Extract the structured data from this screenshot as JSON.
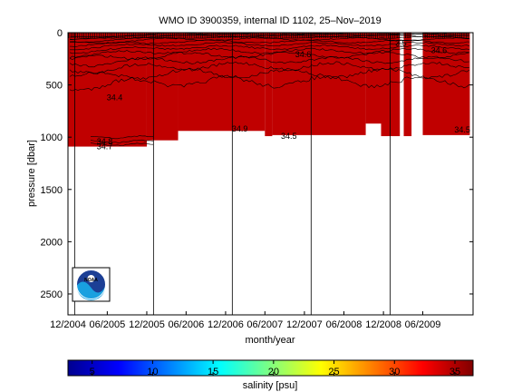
{
  "chart_data": {
    "type": "heatmap",
    "title": "WMO ID 3900359, internal ID 1102, 25–Nov–2019",
    "xlabel": "month/year",
    "ylabel": "pressure [dbar]",
    "y_ticks": [
      0,
      500,
      1000,
      1500,
      2000,
      2500
    ],
    "y_range": [
      0,
      2700
    ],
    "y_reversed": true,
    "x_ticks": [
      "12/2004",
      "06/2005",
      "12/2005",
      "06/2006",
      "12/2006",
      "06/2007",
      "12/2007",
      "06/2008",
      "12/2008",
      "06/2009"
    ],
    "x_range": [
      "2004-12-01",
      "2010-01-20"
    ],
    "profile_depths": [
      {
        "start": "2004-12-01",
        "end": "2005-12-01",
        "max_pressure": 1090
      },
      {
        "start": "2005-12-01",
        "end": "2006-04-25",
        "max_pressure": 1030
      },
      {
        "start": "2006-04-25",
        "end": "2007-06-01",
        "max_pressure": 940
      },
      {
        "start": "2007-06-01",
        "end": "2007-07-05",
        "max_pressure": 990
      },
      {
        "start": "2007-07-05",
        "end": "2008-09-10",
        "max_pressure": 980
      },
      {
        "start": "2008-09-10",
        "end": "2008-11-20",
        "max_pressure": 870
      },
      {
        "start": "2008-11-20",
        "end": "2009-02-15",
        "max_pressure": 990
      },
      {
        "start": "2009-03-05",
        "end": "2009-04-10",
        "max_pressure": 990
      },
      {
        "start": "2009-06-01",
        "end": "2010-01-05",
        "max_pressure": 980
      }
    ],
    "data_gaps": [
      [
        "2009-02-15",
        "2009-03-05"
      ],
      [
        "2009-04-10",
        "2009-06-01"
      ]
    ],
    "year_boundaries": [
      "2005-01-01",
      "2006-01-01",
      "2007-01-01",
      "2008-01-01",
      "2009-01-01"
    ],
    "fill_salinity": 34.5,
    "contour_labels": [
      {
        "text": "34.4",
        "date": "2005-07-05",
        "pressure": 620
      },
      {
        "text": "34.6",
        "date": "2007-11-25",
        "pressure": 210
      },
      {
        "text": "34.5",
        "date": "2007-09-20",
        "pressure": 990
      },
      {
        "text": "34.5",
        "date": "2009-12-01",
        "pressure": 930
      },
      {
        "text": "34.6",
        "date": "2009-08-15",
        "pressure": 170
      },
      {
        "text": "3.5",
        "date": "2009-02-20",
        "pressure": 100
      },
      {
        "text": "34.7",
        "date": "2005-05-20",
        "pressure": 1090
      },
      {
        "text": "34.8",
        "date": "2005-05-20",
        "pressure": 1040
      },
      {
        "text": "34.9",
        "date": "2007-02-05",
        "pressure": 920
      }
    ],
    "colorbar": {
      "label": "salinity [psu]",
      "range": [
        3,
        36.5
      ],
      "ticks": [
        5,
        10,
        15,
        20,
        25,
        30,
        35
      ],
      "colormap": "jet"
    },
    "colors": {
      "fill": "#c00000",
      "contour": "#000000"
    },
    "logo": {
      "text": "NOAA"
    }
  }
}
